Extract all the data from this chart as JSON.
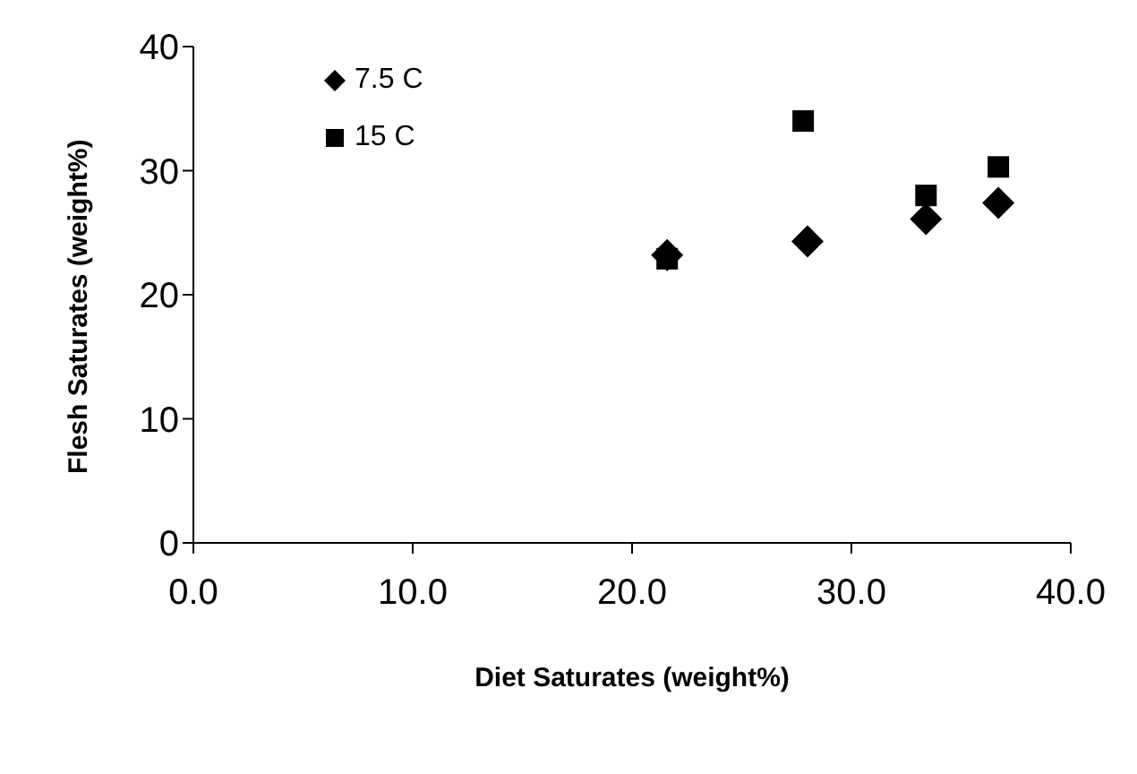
{
  "chart_data": {
    "type": "scatter",
    "xlabel": "Diet Saturates (weight%)",
    "ylabel": "Flesh Saturates (weight%)",
    "xlim": [
      0,
      40
    ],
    "xticks": [
      {
        "value": 0,
        "label": "0.0"
      },
      {
        "value": 10,
        "label": "10.0"
      },
      {
        "value": 20,
        "label": "20.0"
      },
      {
        "value": 30,
        "label": "30.0"
      },
      {
        "value": 40,
        "label": "40.0"
      }
    ],
    "ylim": [
      0,
      40
    ],
    "yticks": [
      0,
      10,
      20,
      30,
      40
    ],
    "grid": false,
    "legend": "top left",
    "series": [
      {
        "name": "7.5 C",
        "color": "#000000",
        "marker": "diamond",
        "x": [
          21.6,
          28.0,
          33.4,
          36.7
        ],
        "values": [
          23.2,
          24.3,
          26.1,
          27.4
        ]
      },
      {
        "name": "15 C",
        "color": "#000000",
        "marker": "square",
        "x": [
          21.6,
          27.8,
          33.4,
          36.7
        ],
        "values": [
          22.9,
          34.0,
          28.0,
          30.3
        ]
      }
    ]
  }
}
